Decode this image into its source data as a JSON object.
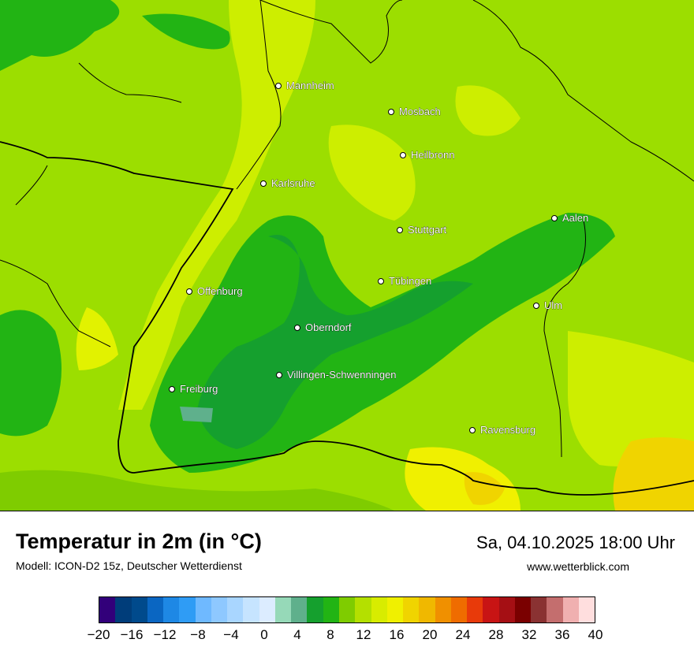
{
  "map": {
    "cities": [
      {
        "name": "Mannheim"
      },
      {
        "name": "Mosbach"
      },
      {
        "name": "Heilbronn"
      },
      {
        "name": "Karlsruhe"
      },
      {
        "name": "Aalen"
      },
      {
        "name": "Stuttgart"
      },
      {
        "name": "Tübingen"
      },
      {
        "name": "Offenburg"
      },
      {
        "name": "Ulm"
      },
      {
        "name": "Oberndorf"
      },
      {
        "name": "Villingen-Schwenningen"
      },
      {
        "name": "Freiburg"
      },
      {
        "name": "Ravensburg"
      }
    ]
  },
  "footer": {
    "title": "Temperatur in 2m (in °C)",
    "model": "Modell: ICON-D2 15z, Deutscher Wetterdienst",
    "datetime": "Sa, 04.10.2025 18:00 Uhr",
    "website": "www.wetterblick.com"
  },
  "legend": {
    "colors": [
      "#32007a",
      "#003d7a",
      "#004a8c",
      "#0a66c2",
      "#1e88e5",
      "#2f9cf5",
      "#6fb9ff",
      "#8ec8ff",
      "#a9d6ff",
      "#c6e4ff",
      "#dcecff",
      "#96d9b8",
      "#5fb08c",
      "#15a02e",
      "#22b414",
      "#7fcc00",
      "#b4e000",
      "#d8ec00",
      "#f0f000",
      "#f0d400",
      "#f0b800",
      "#f09000",
      "#ef6c00",
      "#e83a0a",
      "#c81414",
      "#a50f14",
      "#7a0000",
      "#8a3232",
      "#c46e6e",
      "#f0b0b0",
      "#ffdede"
    ],
    "ticks": [
      "−20",
      "−16",
      "−12",
      "−8",
      "−4",
      "0",
      "4",
      "8",
      "12",
      "16",
      "20",
      "24",
      "28",
      "32",
      "36",
      "40"
    ],
    "min": -20,
    "max": 40
  }
}
